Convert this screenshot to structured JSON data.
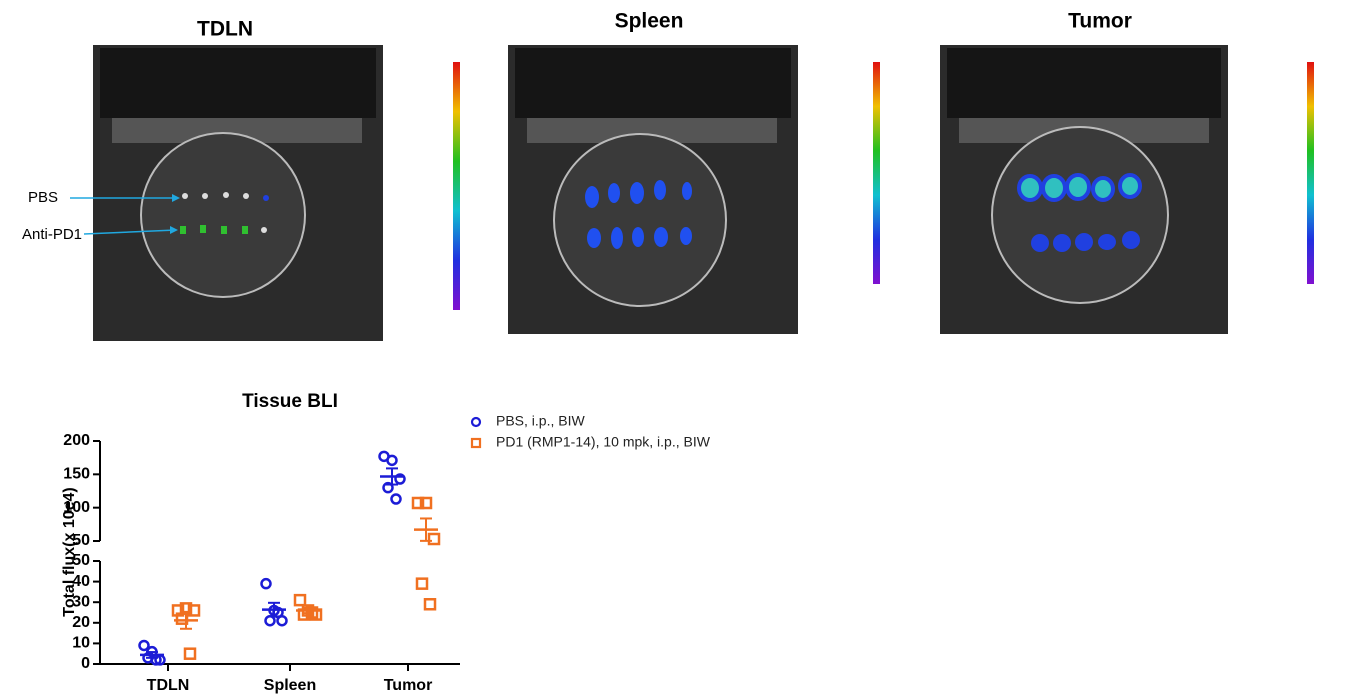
{
  "panels": [
    {
      "title": "TDLN"
    },
    {
      "title": "Spleen"
    },
    {
      "title": "Tumor"
    }
  ],
  "row_labels": [
    "PBS",
    "Anti-PD1"
  ],
  "chart_data": {
    "type": "scatter",
    "title": "Tissue BLI",
    "y_label": "Total flux(x 10e4)",
    "categories": [
      "TDLN",
      "Spleen",
      "Tumor"
    ],
    "y_segments": [
      {
        "ylim": [
          0,
          50
        ],
        "yticks": [
          0,
          10,
          20,
          30,
          40,
          50
        ]
      },
      {
        "ylim": [
          50,
          200
        ],
        "yticks": [
          50,
          100,
          150,
          200
        ]
      }
    ],
    "legend": "upper right",
    "series": [
      {
        "name": "PBS, i.p., BIW",
        "color": "#1c1cd6",
        "marker": "circle",
        "values": [
          [
            9,
            6,
            2,
            3,
            2
          ],
          [
            39,
            26,
            21,
            21,
            25
          ],
          [
            177,
            171,
            143,
            130,
            113
          ]
        ],
        "means": [
          4.4,
          26.4,
          146.8
        ],
        "sems": [
          1.4,
          3.3,
          12.1
        ]
      },
      {
        "name": "PD1 (RMP1-14), 10 mpk, i.p., BIW",
        "color": "#f07020",
        "marker": "square",
        "values": [
          [
            26,
            27,
            26,
            22,
            5
          ],
          [
            31,
            26,
            24,
            24,
            25
          ],
          [
            107,
            107,
            53,
            39,
            29
          ]
        ],
        "means": [
          21.2,
          26,
          67
        ],
        "sems": [
          4.1,
          1.3,
          16.8
        ]
      }
    ]
  }
}
